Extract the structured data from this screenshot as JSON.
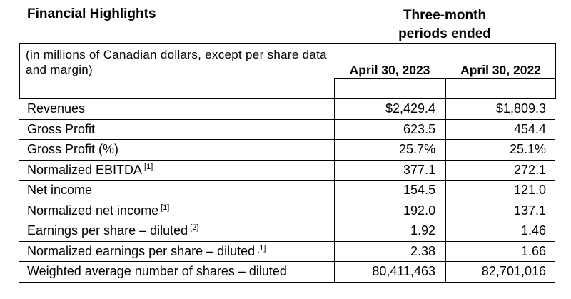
{
  "header": {
    "title": "Financial Highlights",
    "period_heading": "Three-month periods ended",
    "units_note": "(in millions of Canadian dollars, except per share data and margin)",
    "columns": [
      "April 30, 2023",
      "April 30, 2022"
    ]
  },
  "rows": [
    {
      "label": "Revenues",
      "note": "",
      "v2023": "$2,429.4",
      "v2022": "$1,809.3"
    },
    {
      "label": "Gross Profit",
      "note": "",
      "v2023": "623.5",
      "v2022": "454.4"
    },
    {
      "label": "Gross Profit (%)",
      "note": "",
      "v2023": "25.7%",
      "v2022": "25.1%"
    },
    {
      "label": "Normalized EBITDA",
      "note": "[1]",
      "v2023": "377.1",
      "v2022": "272.1"
    },
    {
      "label": "Net income",
      "note": "",
      "v2023": "154.5",
      "v2022": "121.0"
    },
    {
      "label": "Normalized net income",
      "note": "[1]",
      "v2023": "192.0",
      "v2022": "137.1"
    },
    {
      "label": "Earnings per share – diluted",
      "note": "[2]",
      "v2023": "1.92",
      "v2022": "1.46"
    },
    {
      "label": "Normalized earnings per share – diluted",
      "note": "[1]",
      "v2023": "2.38",
      "v2022": "1.66"
    },
    {
      "label": "Weighted average number of shares – diluted",
      "note": "",
      "v2023": "80,411,463",
      "v2022": "82,701,016"
    }
  ]
}
